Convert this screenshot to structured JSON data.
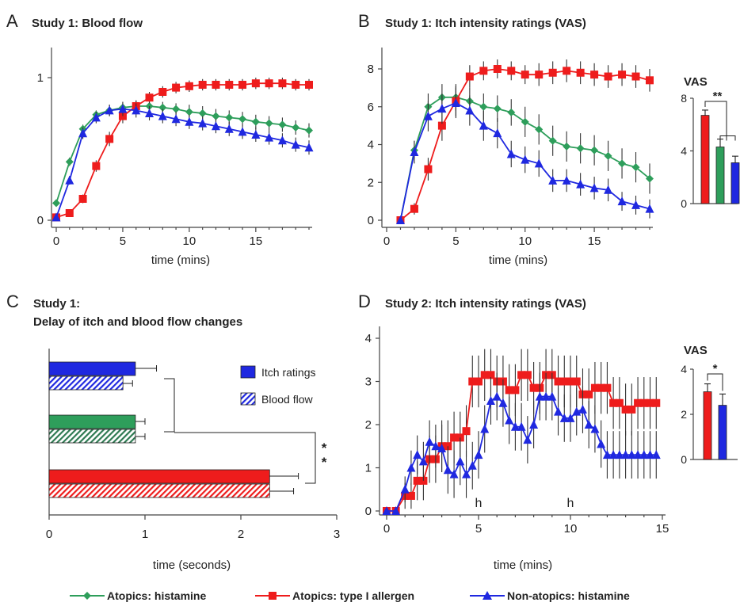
{
  "legend": [
    {
      "label": "Atopics: histamine",
      "color": "#2e9e5b",
      "marker": "diamond"
    },
    {
      "label": "Atopics: type I allergen",
      "color": "#ee1c1c",
      "marker": "square"
    },
    {
      "label": "Non-atopics: histamine",
      "color": "#1f28e0",
      "marker": "triangle"
    }
  ],
  "chart_data": [
    {
      "panel": "A",
      "title": "Study 1: Blood flow",
      "type": "line",
      "xlabel": "time (mins)",
      "ylabel": "",
      "xlim": [
        0,
        19
      ],
      "ylim": [
        0,
        1.1
      ],
      "xticks": [
        0,
        5,
        10,
        15
      ],
      "yticks": [
        0,
        1
      ],
      "x": [
        0,
        1,
        2,
        3,
        4,
        5,
        6,
        7,
        8,
        9,
        10,
        11,
        12,
        13,
        14,
        15,
        16,
        17,
        18,
        19
      ],
      "series": [
        {
          "name": "Atopics: histamine",
          "color": "#2e9e5b",
          "marker": "diamond",
          "values": [
            0.12,
            0.41,
            0.64,
            0.74,
            0.77,
            0.79,
            0.8,
            0.8,
            0.79,
            0.78,
            0.76,
            0.75,
            0.73,
            0.72,
            0.71,
            0.69,
            0.68,
            0.67,
            0.65,
            0.63
          ],
          "errors": [
            0.02,
            0.03,
            0.03,
            0.03,
            0.04,
            0.04,
            0.04,
            0.04,
            0.04,
            0.04,
            0.05,
            0.05,
            0.05,
            0.05,
            0.05,
            0.05,
            0.05,
            0.05,
            0.05,
            0.05
          ]
        },
        {
          "name": "Atopics: type I allergen",
          "color": "#ee1c1c",
          "marker": "square",
          "values": [
            0.02,
            0.05,
            0.15,
            0.38,
            0.57,
            0.73,
            0.8,
            0.86,
            0.9,
            0.93,
            0.94,
            0.95,
            0.95,
            0.95,
            0.95,
            0.96,
            0.96,
            0.96,
            0.95,
            0.95
          ],
          "errors": [
            0.01,
            0.02,
            0.03,
            0.04,
            0.05,
            0.05,
            0.04,
            0.04,
            0.04,
            0.04,
            0.04,
            0.04,
            0.04,
            0.04,
            0.04,
            0.04,
            0.04,
            0.04,
            0.04,
            0.04
          ]
        },
        {
          "name": "Non-atopics: histamine",
          "color": "#1f28e0",
          "marker": "triangle",
          "values": [
            0.02,
            0.28,
            0.61,
            0.72,
            0.77,
            0.78,
            0.77,
            0.75,
            0.73,
            0.71,
            0.69,
            0.68,
            0.66,
            0.64,
            0.62,
            0.6,
            0.58,
            0.56,
            0.53,
            0.51
          ],
          "errors": [
            0.01,
            0.03,
            0.04,
            0.04,
            0.04,
            0.05,
            0.05,
            0.05,
            0.05,
            0.05,
            0.05,
            0.05,
            0.05,
            0.05,
            0.05,
            0.05,
            0.05,
            0.05,
            0.05,
            0.05
          ]
        }
      ]
    },
    {
      "panel": "B",
      "title": "Study 1: Itch intensity ratings (VAS)",
      "type": "line",
      "xlabel": "time (mins)",
      "ylabel": "",
      "xlim": [
        0,
        19
      ],
      "ylim": [
        0,
        9
      ],
      "xticks": [
        0,
        5,
        10,
        15
      ],
      "yticks": [
        0,
        2,
        4,
        6,
        8
      ],
      "x": [
        1,
        2,
        3,
        4,
        5,
        6,
        7,
        8,
        9,
        10,
        11,
        12,
        13,
        14,
        15,
        16,
        17,
        18,
        19
      ],
      "series": [
        {
          "name": "Atopics: histamine",
          "color": "#2e9e5b",
          "marker": "diamond",
          "values": [
            0.0,
            3.7,
            6.0,
            6.5,
            6.5,
            6.3,
            6.0,
            5.9,
            5.7,
            5.2,
            4.8,
            4.2,
            3.9,
            3.8,
            3.7,
            3.4,
            3.0,
            2.8,
            2.2
          ],
          "errors": [
            0.0,
            0.5,
            0.7,
            0.7,
            0.7,
            0.7,
            0.7,
            0.7,
            0.7,
            0.8,
            0.8,
            0.8,
            0.8,
            0.8,
            0.8,
            0.8,
            0.8,
            0.8,
            0.8
          ]
        },
        {
          "name": "Atopics: type I allergen",
          "color": "#ee1c1c",
          "marker": "square",
          "values": [
            0.0,
            0.6,
            2.7,
            5.0,
            6.3,
            7.6,
            7.9,
            8.0,
            7.9,
            7.7,
            7.7,
            7.8,
            7.9,
            7.8,
            7.7,
            7.6,
            7.7,
            7.6,
            7.4
          ],
          "errors": [
            0.0,
            0.3,
            0.6,
            0.8,
            0.8,
            0.6,
            0.5,
            0.5,
            0.5,
            0.5,
            0.6,
            0.6,
            0.6,
            0.6,
            0.6,
            0.6,
            0.6,
            0.6,
            0.6
          ]
        },
        {
          "name": "Non-atopics: histamine",
          "color": "#1f28e0",
          "marker": "triangle",
          "values": [
            0.0,
            3.6,
            5.5,
            5.9,
            6.2,
            5.8,
            5.0,
            4.6,
            3.5,
            3.2,
            3.0,
            2.1,
            2.1,
            1.9,
            1.7,
            1.6,
            1.0,
            0.8,
            0.6
          ],
          "errors": [
            0.0,
            0.6,
            0.8,
            0.8,
            0.8,
            0.8,
            0.8,
            0.8,
            0.7,
            0.7,
            0.7,
            0.6,
            0.6,
            0.6,
            0.6,
            0.6,
            0.5,
            0.5,
            0.5
          ]
        }
      ],
      "inset": {
        "title": "VAS",
        "type": "bar",
        "ylim": [
          0,
          8
        ],
        "yticks": [
          0,
          4,
          8
        ],
        "annotation": "**",
        "values": [
          6.7,
          4.3,
          3.1
        ],
        "errors": [
          0.4,
          0.6,
          0.5
        ],
        "colors": [
          "#ee1c1c",
          "#2e9e5b",
          "#1f28e0"
        ]
      }
    },
    {
      "panel": "C",
      "title": "Study 1:",
      "subtitle": "Delay of itch and blood flow changes",
      "type": "bar",
      "orientation": "horizontal",
      "xlabel": "time (seconds)",
      "xlim": [
        0,
        3
      ],
      "xticks": [
        0,
        1,
        2,
        3
      ],
      "legend": [
        "Itch ratings",
        "Blood flow"
      ],
      "annotation": "**",
      "groups": [
        {
          "color": "#1f28e0",
          "itch": 0.9,
          "itch_err": 0.22,
          "flow": 0.77,
          "flow_err": 0.1
        },
        {
          "color": "#2e9e5b",
          "itch": 0.9,
          "itch_err": 0.1,
          "flow": 0.9,
          "flow_err": 0.1
        },
        {
          "color": "#ee1c1c",
          "itch": 2.3,
          "itch_err": 0.3,
          "flow": 2.3,
          "flow_err": 0.25
        }
      ]
    },
    {
      "panel": "D",
      "title": "Study 2: Itch intensity ratings (VAS)",
      "type": "line",
      "xlabel": "time (mins)",
      "ylabel": "",
      "xlim": [
        0,
        15
      ],
      "ylim": [
        0,
        4
      ],
      "xticks": [
        0,
        5,
        10,
        15
      ],
      "yticks": [
        0,
        1,
        2,
        3,
        4
      ],
      "annotations": [
        {
          "text": "h",
          "x": 5
        },
        {
          "text": "h",
          "x": 10
        }
      ],
      "x": [
        0,
        0.5,
        1,
        1.333,
        1.667,
        2,
        2.333,
        2.667,
        3,
        3.333,
        3.667,
        4,
        4.333,
        4.667,
        5,
        5.333,
        5.667,
        6,
        6.333,
        6.667,
        7,
        7.333,
        7.667,
        8,
        8.333,
        8.667,
        9,
        9.333,
        9.667,
        10,
        10.333,
        10.667,
        11,
        11.333,
        11.667,
        12,
        12.333,
        12.667,
        13,
        13.333,
        13.667,
        14,
        14.333,
        14.667
      ],
      "series": [
        {
          "name": "Atopics: type I allergen",
          "color": "#ee1c1c",
          "marker": "square",
          "values": [
            0,
            0,
            0.35,
            0.35,
            0.7,
            0.7,
            1.2,
            1.2,
            1.5,
            1.5,
            1.7,
            1.7,
            1.85,
            3.0,
            3.0,
            3.15,
            3.15,
            3.0,
            3.0,
            2.8,
            2.8,
            3.15,
            3.15,
            2.85,
            2.85,
            3.15,
            3.15,
            3.0,
            3.0,
            3.0,
            3.0,
            2.7,
            2.7,
            2.85,
            2.85,
            2.85,
            2.5,
            2.5,
            2.35,
            2.35,
            2.5,
            2.5,
            2.5,
            2.5
          ],
          "errors": [
            0.05,
            0.05,
            0.3,
            0.3,
            0.45,
            0.45,
            0.55,
            0.55,
            0.6,
            0.6,
            0.6,
            0.6,
            0.6,
            0.6,
            0.6,
            0.6,
            0.6,
            0.6,
            0.6,
            0.6,
            0.6,
            0.6,
            0.6,
            0.6,
            0.6,
            0.6,
            0.6,
            0.6,
            0.6,
            0.6,
            0.6,
            0.6,
            0.6,
            0.6,
            0.6,
            0.6,
            0.6,
            0.6,
            0.6,
            0.6,
            0.6,
            0.6,
            0.6,
            0.6
          ]
        },
        {
          "name": "Non-atopics: histamine",
          "color": "#1f28e0",
          "marker": "triangle",
          "values": [
            0,
            0,
            0.5,
            1.0,
            1.3,
            1.15,
            1.6,
            1.5,
            1.45,
            0.95,
            0.85,
            1.15,
            0.85,
            1.05,
            1.3,
            1.9,
            2.55,
            2.65,
            2.5,
            2.1,
            1.95,
            1.95,
            1.65,
            2.0,
            2.65,
            2.65,
            2.65,
            2.3,
            2.15,
            2.15,
            2.3,
            2.35,
            2.0,
            1.9,
            1.55,
            1.3,
            1.3,
            1.3,
            1.3,
            1.3,
            1.3,
            1.3,
            1.3,
            1.3
          ],
          "errors": [
            0.05,
            0.05,
            0.3,
            0.4,
            0.45,
            0.45,
            0.5,
            0.5,
            0.55,
            0.55,
            0.55,
            0.55,
            0.55,
            0.55,
            0.55,
            0.55,
            0.55,
            0.55,
            0.55,
            0.55,
            0.55,
            0.55,
            0.55,
            0.55,
            0.55,
            0.55,
            0.55,
            0.55,
            0.55,
            0.55,
            0.55,
            0.55,
            0.55,
            0.55,
            0.55,
            0.55,
            0.55,
            0.55,
            0.55,
            0.55,
            0.55,
            0.55,
            0.55,
            0.55
          ]
        }
      ],
      "inset": {
        "title": "VAS",
        "type": "bar",
        "ylim": [
          0,
          4
        ],
        "yticks": [
          0,
          2,
          4
        ],
        "annotation": "*",
        "values": [
          3.0,
          2.4
        ],
        "errors": [
          0.35,
          0.5
        ],
        "colors": [
          "#ee1c1c",
          "#1f28e0"
        ]
      }
    }
  ]
}
